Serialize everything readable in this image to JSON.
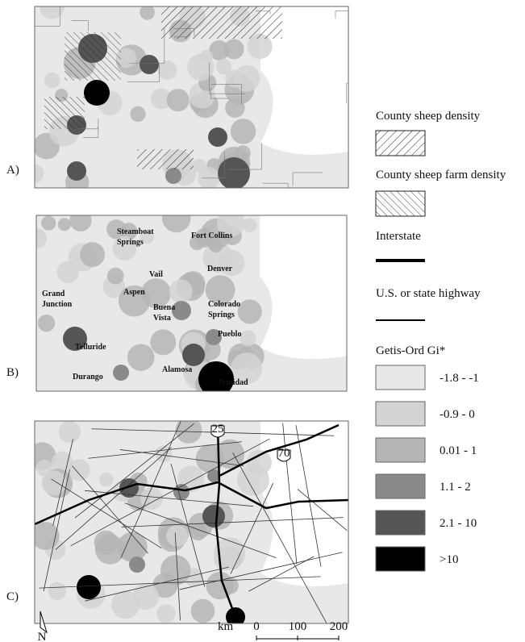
{
  "panels": [
    {
      "label": "A)"
    },
    {
      "label": "B)",
      "cities": [
        {
          "lines": [
            "Steamboat",
            "Springs"
          ]
        },
        {
          "lines": [
            "Fort Collins"
          ]
        },
        {
          "lines": [
            "Vail"
          ]
        },
        {
          "lines": [
            "Denver"
          ]
        },
        {
          "lines": [
            "Grand",
            "Junction"
          ]
        },
        {
          "lines": [
            "Aspen"
          ]
        },
        {
          "lines": [
            "Buena",
            "Vista"
          ]
        },
        {
          "lines": [
            "Colorado",
            "Springs"
          ]
        },
        {
          "lines": [
            "Pueblo"
          ]
        },
        {
          "lines": [
            "Telluride"
          ]
        },
        {
          "lines": [
            "Alamosa"
          ]
        },
        {
          "lines": [
            "Durango"
          ]
        },
        {
          "lines": [
            "Trinidad"
          ]
        }
      ]
    },
    {
      "label": "C)",
      "shields": [
        "25",
        "70"
      ]
    }
  ],
  "legend": {
    "items": [
      {
        "label": "County sheep density"
      },
      {
        "label": "County sheep farm density"
      },
      {
        "label": "Interstate"
      },
      {
        "label": "U.S. or state highway"
      }
    ],
    "title": "Getis-Ord Gi*",
    "classes": [
      {
        "label": "-1.8 - -1",
        "color": "#e8e8e8"
      },
      {
        "label": "-0.9 - 0",
        "color": "#d3d3d3"
      },
      {
        "label": "0.01 - 1",
        "color": "#b5b5b5"
      },
      {
        "label": "1.1 - 2",
        "color": "#8a8a8a"
      },
      {
        "label": "2.1 - 10",
        "color": "#555555"
      },
      {
        "label": ">10",
        "color": "#000000"
      }
    ]
  },
  "scale": {
    "unit": "km",
    "ticks": [
      "0",
      "100",
      "200"
    ]
  },
  "north": "N"
}
